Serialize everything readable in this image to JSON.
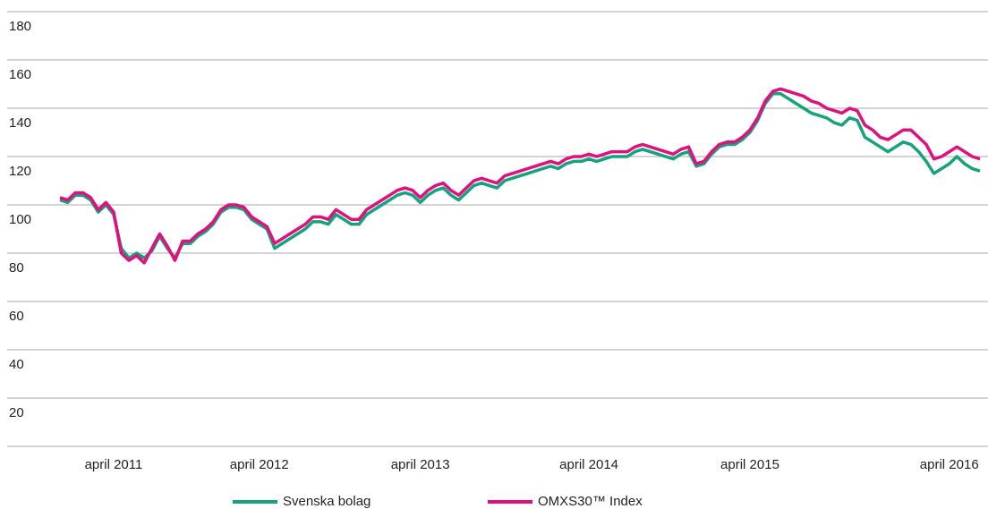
{
  "chart_data": {
    "type": "line",
    "categories": [
      null,
      null,
      null,
      null,
      null,
      null,
      null,
      "april 2011",
      null,
      null,
      null,
      null,
      null,
      null,
      null,
      null,
      null,
      null,
      null,
      null,
      null,
      null,
      null,
      null,
      null,
      null,
      "april 2012",
      null,
      null,
      null,
      null,
      null,
      null,
      null,
      null,
      null,
      null,
      null,
      null,
      null,
      null,
      null,
      null,
      null,
      null,
      null,
      null,
      "april 2013",
      null,
      null,
      null,
      null,
      null,
      null,
      null,
      null,
      null,
      null,
      null,
      null,
      null,
      null,
      null,
      null,
      null,
      null,
      null,
      null,
      null,
      "april 2014",
      null,
      null,
      null,
      null,
      null,
      null,
      null,
      null,
      null,
      null,
      null,
      null,
      null,
      null,
      null,
      null,
      null,
      null,
      null,
      null,
      "april 2015",
      null,
      null,
      null,
      null,
      null,
      null,
      null,
      null,
      null,
      null,
      null,
      null,
      null,
      null,
      null,
      null,
      null,
      null,
      null,
      null,
      null,
      null,
      null,
      null,
      null,
      "april 2016",
      null,
      null,
      null,
      null
    ],
    "series": [
      {
        "name": "Svenska bolag",
        "color": "#14a37c",
        "values": [
          102,
          101,
          104,
          104,
          102,
          97,
          100,
          96,
          82,
          78,
          80,
          78,
          81,
          87,
          82,
          78,
          84,
          84,
          87,
          89,
          92,
          97,
          99,
          99,
          98,
          94,
          92,
          90,
          82,
          84,
          86,
          88,
          90,
          93,
          93,
          92,
          96,
          94,
          92,
          92,
          96,
          98,
          100,
          102,
          104,
          105,
          104,
          101,
          104,
          106,
          107,
          104,
          102,
          105,
          108,
          109,
          108,
          107,
          110,
          111,
          112,
          113,
          114,
          115,
          116,
          115,
          117,
          118,
          118,
          119,
          118,
          119,
          120,
          120,
          120,
          122,
          123,
          122,
          121,
          120,
          119,
          121,
          122,
          116,
          117,
          121,
          124,
          125,
          125,
          127,
          130,
          135,
          142,
          146,
          146,
          144,
          142,
          140,
          138,
          137,
          136,
          134,
          133,
          136,
          135,
          128,
          126,
          124,
          122,
          124,
          126,
          125,
          122,
          118,
          113,
          115,
          117,
          120,
          117,
          115,
          114
        ]
      },
      {
        "name": "OMXS30™ Index",
        "color": "#e0107e",
        "values": [
          103,
          102,
          105,
          105,
          103,
          98,
          101,
          97,
          80,
          77,
          79,
          76,
          82,
          88,
          83,
          77,
          85,
          85,
          88,
          90,
          93,
          98,
          100,
          100,
          99,
          95,
          93,
          91,
          84,
          86,
          88,
          90,
          92,
          95,
          95,
          94,
          98,
          96,
          94,
          94,
          98,
          100,
          102,
          104,
          106,
          107,
          106,
          103,
          106,
          108,
          109,
          106,
          104,
          107,
          110,
          111,
          110,
          109,
          112,
          113,
          114,
          115,
          116,
          117,
          118,
          117,
          119,
          120,
          120,
          121,
          120,
          121,
          122,
          122,
          122,
          124,
          125,
          124,
          123,
          122,
          121,
          123,
          124,
          117,
          118,
          122,
          125,
          126,
          126,
          128,
          131,
          136,
          143,
          147,
          148,
          147,
          146,
          145,
          143,
          142,
          140,
          139,
          138,
          140,
          139,
          133,
          131,
          128,
          127,
          129,
          131,
          131,
          128,
          125,
          119,
          120,
          122,
          124,
          122,
          120,
          119
        ]
      }
    ],
    "ylim": [
      0,
      180
    ],
    "yticks": [
      20,
      40,
      60,
      80,
      100,
      120,
      140,
      160,
      180
    ],
    "grid": true
  }
}
